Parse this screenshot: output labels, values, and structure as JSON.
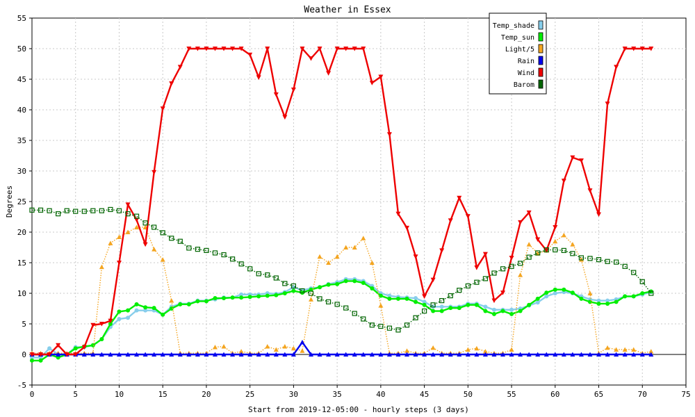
{
  "chart_data": {
    "type": "line",
    "title": "Weather in Essex",
    "xlabel": "Start from 2019-12-05:00 - hourly steps (3 days)",
    "ylabel": "Degrees",
    "xlim": [
      0,
      75
    ],
    "ylim": [
      -5,
      55
    ],
    "x_ticks": [
      0,
      5,
      10,
      15,
      20,
      25,
      30,
      35,
      40,
      45,
      50,
      55,
      60,
      65,
      70,
      75
    ],
    "y_ticks": [
      -5,
      0,
      5,
      10,
      15,
      20,
      25,
      30,
      35,
      40,
      45,
      50,
      55
    ],
    "grid": true,
    "legend_position": "top-right",
    "series": [
      {
        "name": "Temp_shade",
        "color": "#87ceeb",
        "style": "solid",
        "marker": "circle",
        "values": [
          -0.5,
          -0.5,
          1.0,
          0.0,
          0.0,
          1.2,
          1.2,
          1.5,
          2.5,
          4.5,
          5.8,
          6.0,
          7.2,
          7.2,
          7.2,
          6.5,
          7.8,
          8.3,
          8.3,
          8.8,
          8.8,
          9.0,
          9.3,
          9.3,
          9.8,
          9.8,
          9.8,
          10.0,
          9.9,
          10.2,
          11.0,
          10.5,
          10.8,
          11.0,
          11.5,
          11.8,
          12.3,
          12.3,
          12.0,
          11.2,
          10.0,
          9.6,
          9.4,
          9.3,
          9.2,
          8.6,
          7.8,
          7.8,
          7.8,
          7.8,
          8.3,
          8.3,
          7.8,
          7.3,
          7.3,
          7.3,
          7.5,
          8.0,
          8.5,
          9.5,
          10.0,
          10.2,
          10.0,
          9.5,
          9.0,
          8.8,
          8.8,
          9.0,
          9.5,
          9.5,
          9.8,
          10.2
        ]
      },
      {
        "name": "Temp_sun",
        "color": "#00ee00",
        "style": "solid",
        "marker": "circle",
        "values": [
          -1.0,
          -1.0,
          0.0,
          -0.5,
          0.0,
          1.0,
          1.3,
          1.5,
          2.5,
          5.0,
          7.0,
          7.2,
          8.2,
          7.7,
          7.6,
          6.5,
          7.5,
          8.2,
          8.2,
          8.7,
          8.7,
          9.2,
          9.2,
          9.3,
          9.3,
          9.4,
          9.5,
          9.6,
          9.7,
          10.0,
          10.4,
          10.1,
          10.6,
          11.0,
          11.4,
          11.5,
          12.0,
          12.0,
          11.7,
          10.8,
          9.6,
          9.1,
          9.1,
          9.1,
          8.6,
          8.1,
          7.1,
          7.1,
          7.6,
          7.6,
          8.1,
          8.1,
          7.1,
          6.6,
          7.1,
          6.6,
          7.1,
          8.1,
          9.1,
          10.1,
          10.6,
          10.6,
          10.1,
          9.1,
          8.6,
          8.3,
          8.3,
          8.6,
          9.5,
          9.5,
          10.0,
          10.3
        ]
      },
      {
        "name": "Light/5",
        "color": "#f4a520",
        "style": "dotted",
        "marker": "triangle-up",
        "values": [
          0.2,
          0.2,
          0.2,
          0.2,
          0.2,
          0.2,
          0.2,
          0.2,
          14.3,
          18.2,
          19.2,
          20.0,
          20.8,
          20.8,
          17.2,
          15.5,
          8.8,
          0.2,
          0.2,
          0.2,
          0.2,
          1.2,
          1.3,
          0.2,
          0.5,
          0.2,
          0.2,
          1.3,
          0.8,
          1.3,
          1.0,
          0.6,
          9.0,
          16.0,
          15.0,
          16.0,
          17.5,
          17.5,
          19.0,
          15.0,
          8.0,
          0.2,
          0.2,
          0.6,
          0.2,
          0.2,
          1.1,
          0.2,
          0.2,
          0.2,
          0.8,
          1.0,
          0.5,
          0.2,
          0.2,
          0.8,
          13.0,
          18.0,
          16.5,
          17.0,
          18.5,
          19.5,
          18.0,
          15.5,
          10.0,
          0.2,
          1.1,
          0.8,
          0.8,
          0.8,
          0.2,
          0.5
        ]
      },
      {
        "name": "Rain",
        "color": "#0000ee",
        "style": "solid",
        "marker": "triangle-up",
        "values": [
          0,
          0,
          0,
          0,
          0,
          0,
          0,
          0,
          0,
          0,
          0,
          0,
          0,
          0,
          0,
          0,
          0,
          0,
          0,
          0,
          0,
          0,
          0,
          0,
          0,
          0,
          0,
          0,
          0,
          0,
          0,
          2.0,
          0,
          0,
          0,
          0,
          0,
          0,
          0,
          0,
          0,
          0,
          0,
          0,
          0,
          0,
          0,
          0,
          0,
          0,
          0,
          0,
          0,
          0,
          0,
          0,
          0,
          0,
          0,
          0,
          0,
          0,
          0,
          0,
          0,
          0,
          0,
          0,
          0,
          0,
          0,
          0
        ]
      },
      {
        "name": "Wind",
        "color": "#ee0000",
        "style": "solid",
        "marker": "triangle-down",
        "values": [
          0.0,
          0.0,
          0.0,
          1.5,
          0.0,
          0.0,
          1.2,
          4.8,
          5.0,
          5.5,
          15.0,
          24.5,
          22.0,
          18.0,
          29.8,
          40.2,
          44.3,
          47.0,
          50.0,
          50.0,
          50.0,
          50.0,
          50.0,
          50.0,
          50.0,
          49.0,
          45.3,
          50.0,
          42.5,
          38.8,
          43.3,
          50.0,
          48.4,
          50.0,
          46.0,
          50.0,
          50.0,
          50.0,
          50.0,
          44.4,
          45.4,
          36.0,
          23.0,
          20.7,
          16.0,
          9.5,
          12.2,
          17.0,
          21.9,
          25.6,
          22.6,
          14.2,
          16.4,
          8.8,
          10.1,
          15.8,
          21.6,
          23.2,
          18.8,
          17.0,
          20.8,
          28.4,
          32.2,
          31.7,
          26.8,
          22.9,
          41.0,
          47.0,
          50.0,
          50.0,
          50.0,
          50.0
        ]
      },
      {
        "name": "Barom",
        "color": "#006400",
        "style": "dotted",
        "marker": "square",
        "values": [
          23.6,
          23.6,
          23.5,
          23.0,
          23.5,
          23.4,
          23.4,
          23.5,
          23.5,
          23.7,
          23.5,
          23.0,
          22.6,
          21.5,
          20.8,
          19.9,
          19.0,
          18.5,
          17.4,
          17.2,
          17.0,
          16.6,
          16.3,
          15.6,
          14.8,
          14.0,
          13.2,
          13.0,
          12.5,
          11.6,
          11.2,
          10.4,
          10.0,
          9.1,
          8.6,
          8.2,
          7.6,
          6.7,
          5.8,
          4.8,
          4.6,
          4.3,
          4.0,
          4.8,
          6.0,
          7.1,
          8.1,
          8.8,
          9.6,
          10.5,
          11.2,
          11.8,
          12.4,
          13.3,
          14.0,
          14.4,
          14.9,
          15.9,
          16.6,
          17.1,
          17.1,
          17.0,
          16.5,
          15.8,
          15.7,
          15.5,
          15.2,
          15.1,
          14.4,
          13.4,
          11.9,
          10.0
        ]
      }
    ]
  }
}
